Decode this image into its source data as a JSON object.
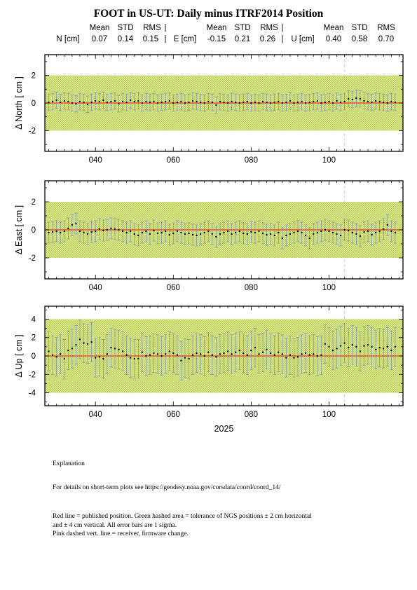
{
  "header": {
    "title": "FOOT in US-UT: Daily minus ITRF2014 Position",
    "stats_headers": {
      "mean": "Mean",
      "std": "STD",
      "rms": "RMS"
    },
    "components": [
      {
        "label": "N [cm]",
        "mean": "0.07",
        "std": "0.14",
        "rms": "0.15"
      },
      {
        "label": "E [cm]",
        "mean": "-0.15",
        "std": "0.21",
        "rms": "0.26"
      },
      {
        "label": "U [cm]",
        "mean": "0.40",
        "std": "0.58",
        "rms": "0.70"
      }
    ]
  },
  "chart_data": [
    {
      "type": "scatter",
      "ylabel": "Δ North  [ cm ]",
      "xlim": [
        27,
        119
      ],
      "ylim": [
        -3.5,
        3.5
      ],
      "yticks": [
        -2,
        0,
        2
      ],
      "xticks": [
        "040",
        "060",
        "080",
        "100"
      ],
      "tolerance_band": [
        -2,
        2
      ],
      "reference_line": 0,
      "firmware_change_day": 104,
      "error_bar_sigma": 0.6,
      "x": [
        28,
        29,
        30,
        31,
        32,
        33,
        34,
        35,
        36,
        37,
        38,
        39,
        40,
        41,
        42,
        43,
        44,
        45,
        46,
        47,
        48,
        49,
        50,
        51,
        52,
        53,
        54,
        55,
        56,
        57,
        58,
        59,
        60,
        61,
        62,
        63,
        64,
        65,
        66,
        67,
        68,
        69,
        70,
        71,
        72,
        73,
        74,
        75,
        76,
        77,
        78,
        79,
        80,
        81,
        82,
        83,
        84,
        85,
        86,
        87,
        88,
        89,
        90,
        91,
        92,
        93,
        94,
        95,
        96,
        97,
        98,
        99,
        100,
        101,
        102,
        103,
        104,
        105,
        106,
        107,
        108,
        109,
        110,
        111,
        112,
        113,
        114,
        115,
        116,
        117
      ],
      "values": [
        0.05,
        0.1,
        0.2,
        0.05,
        0.15,
        0.1,
        0.0,
        -0.05,
        0.1,
        0.05,
        -0.1,
        0.05,
        0.15,
        0.1,
        0.2,
        0.05,
        0.1,
        0.15,
        -0.05,
        0.1,
        0.05,
        0.2,
        0.1,
        0.15,
        0.0,
        0.1,
        0.05,
        0.1,
        0.0,
        0.05,
        0.1,
        0.15,
        0.0,
        0.05,
        0.1,
        0.0,
        0.05,
        0.15,
        0.1,
        0.05,
        0.0,
        0.1,
        0.05,
        -0.15,
        0.1,
        0.05,
        0.0,
        0.1,
        0.05,
        0.0,
        0.05,
        0.1,
        0.0,
        0.05,
        0.0,
        0.1,
        0.05,
        0.0,
        0.05,
        0.1,
        0.0,
        0.05,
        0.15,
        0.0,
        0.05,
        0.1,
        0.0,
        0.05,
        0.1,
        0.15,
        0.0,
        0.05,
        0.1,
        0.0,
        0.15,
        0.05,
        0.1,
        0.3,
        0.25,
        0.35,
        0.3,
        0.15,
        0.1,
        0.05,
        0.15,
        0.1,
        0.05,
        0.0,
        0.1,
        0.05
      ]
    },
    {
      "type": "scatter",
      "ylabel": "Δ East  [ cm ]",
      "xlim": [
        27,
        119
      ],
      "ylim": [
        -3.5,
        3.5
      ],
      "yticks": [
        -2,
        0,
        2
      ],
      "xticks": [
        "040",
        "060",
        "080",
        "100"
      ],
      "tolerance_band": [
        -2,
        2
      ],
      "reference_line": 0,
      "firmware_change_day": 104,
      "error_bar_sigma": 0.75,
      "x": [
        28,
        29,
        30,
        31,
        32,
        33,
        34,
        35,
        36,
        37,
        38,
        39,
        40,
        41,
        42,
        43,
        44,
        45,
        46,
        47,
        48,
        49,
        50,
        51,
        52,
        53,
        54,
        55,
        56,
        57,
        58,
        59,
        60,
        61,
        62,
        63,
        64,
        65,
        66,
        67,
        68,
        69,
        70,
        71,
        72,
        73,
        74,
        75,
        76,
        77,
        78,
        79,
        80,
        81,
        82,
        83,
        84,
        85,
        86,
        87,
        88,
        89,
        90,
        91,
        92,
        93,
        94,
        95,
        96,
        97,
        98,
        99,
        100,
        101,
        102,
        103,
        104,
        105,
        106,
        107,
        108,
        109,
        110,
        111,
        112,
        113,
        114,
        115,
        116,
        117
      ],
      "values": [
        -0.2,
        -0.15,
        -0.1,
        -0.2,
        -0.1,
        0.1,
        0.35,
        0.45,
        -0.1,
        -0.2,
        -0.3,
        -0.15,
        -0.1,
        0.05,
        -0.05,
        0.0,
        0.1,
        0.05,
        0.0,
        -0.1,
        -0.2,
        -0.1,
        -0.3,
        -0.4,
        -0.2,
        -0.1,
        -0.3,
        -0.05,
        -0.25,
        -0.2,
        -0.1,
        -0.35,
        -0.25,
        -0.1,
        -0.2,
        -0.3,
        -0.25,
        -0.35,
        -0.4,
        -0.3,
        -0.2,
        -0.1,
        -0.3,
        -0.5,
        -0.3,
        -0.2,
        -0.1,
        -0.3,
        -0.2,
        -0.1,
        -0.25,
        -0.3,
        -0.15,
        -0.2,
        -0.1,
        -0.25,
        -0.35,
        -0.3,
        -0.4,
        -0.2,
        -0.6,
        -0.4,
        -0.3,
        -0.2,
        -0.1,
        -0.2,
        -0.4,
        -0.6,
        -0.3,
        -0.2,
        -0.1,
        0.0,
        -0.1,
        -0.2,
        -0.3,
        -0.4,
        0.0,
        -0.05,
        -0.2,
        -0.3,
        -0.45,
        -0.15,
        -0.1,
        -0.35,
        -0.2,
        -0.1,
        0.05,
        0.35,
        -0.1,
        -0.2
      ]
    },
    {
      "type": "scatter",
      "ylabel": "Δ Up  [ cm ]",
      "xlabel": "2025",
      "xlim": [
        27,
        119
      ],
      "ylim": [
        -5.4,
        5.4
      ],
      "yticks": [
        -4,
        -2,
        0,
        2,
        4
      ],
      "xticks": [
        "040",
        "060",
        "080",
        "100"
      ],
      "tolerance_band": [
        -4,
        4
      ],
      "reference_line": 0,
      "firmware_change_day": 104,
      "error_bar_sigma": 2.1,
      "x": [
        28,
        29,
        30,
        31,
        32,
        33,
        34,
        35,
        36,
        37,
        38,
        39,
        40,
        41,
        42,
        43,
        44,
        45,
        46,
        47,
        48,
        49,
        50,
        51,
        52,
        53,
        54,
        55,
        56,
        57,
        58,
        59,
        60,
        61,
        62,
        63,
        64,
        65,
        66,
        67,
        68,
        69,
        70,
        71,
        72,
        73,
        74,
        75,
        76,
        77,
        78,
        79,
        80,
        81,
        82,
        83,
        84,
        85,
        86,
        87,
        88,
        89,
        90,
        91,
        92,
        93,
        94,
        95,
        96,
        97,
        98,
        99,
        100,
        101,
        102,
        103,
        104,
        105,
        106,
        107,
        108,
        109,
        110,
        111,
        112,
        113,
        114,
        115,
        116,
        117
      ],
      "values": [
        0.5,
        0.1,
        -0.1,
        0.2,
        -0.3,
        0.6,
        0.8,
        1.2,
        1.8,
        1.4,
        1.3,
        1.5,
        -0.2,
        -0.1,
        -0.3,
        0.2,
        0.9,
        0.8,
        0.7,
        0.5,
        0.1,
        -0.2,
        -0.3,
        -0.3,
        0.4,
        0.0,
        0.1,
        0.3,
        0.2,
        0.0,
        0.2,
        0.5,
        0.3,
        0.1,
        -0.5,
        -0.2,
        -0.3,
        0.1,
        0.3,
        0.2,
        0.0,
        0.4,
        0.1,
        -0.1,
        0.2,
        0.3,
        0.5,
        0.2,
        0.4,
        0.6,
        0.3,
        0.1,
        0.6,
        0.9,
        0.2,
        0.4,
        0.7,
        0.3,
        0.1,
        0.4,
        0.2,
        -0.2,
        0.1,
        -0.2,
        -0.1,
        0.2,
        0.3,
        0.1,
        0.2,
        0.0,
        0.1,
        1.3,
        1.0,
        0.6,
        0.8,
        1.1,
        1.4,
        0.9,
        1.2,
        1.0,
        0.5,
        1.1,
        1.2,
        1.0,
        0.7,
        0.9,
        0.8,
        1.0,
        0.6,
        1.0
      ]
    }
  ],
  "notes": {
    "heading": "Explanation",
    "details": "For details on short-term plots see https://geodesy.noaa.gov/corsdata/coord/coord_14/",
    "legend": "Red line = published position.  Green hashed area = tolerance of NGS positions ± 2 cm horizontal\nand ± 4 cm vertical.  All error bars are 1 sigma.\nPink dashed vert. line = receiver, firmware change."
  },
  "colors": {
    "band": "#c9dc63",
    "reference_line": "#ff2a1a",
    "error_bar": "#6f86c6",
    "firmware_line": "#f4b9c8",
    "point": "#000000"
  }
}
